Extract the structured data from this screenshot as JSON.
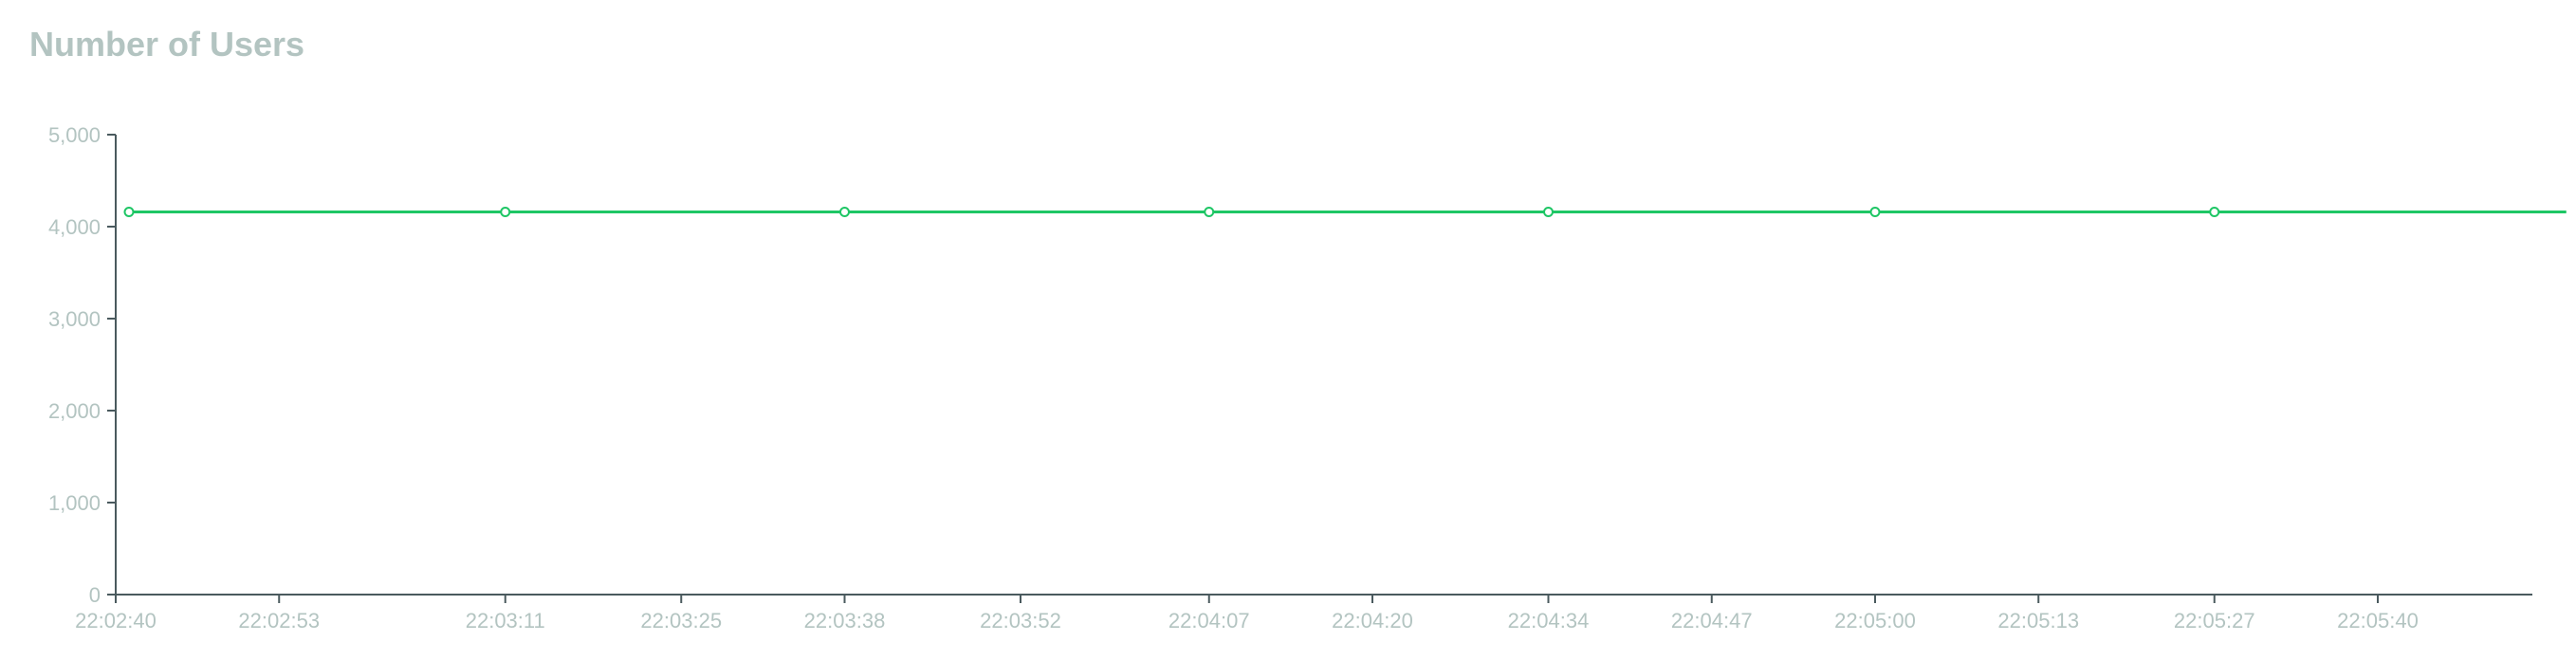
{
  "colors": {
    "title": "#b3c4c1",
    "axis": "#4a5a5e",
    "tick_label": "#b3c4c1",
    "series": "#1ec665"
  },
  "chart_data": {
    "type": "line",
    "title": "Number of Users",
    "xlabel": "",
    "ylabel": "",
    "ylim": [
      0,
      5000
    ],
    "xlim": [
      "22:02:40",
      "22:05:55"
    ],
    "grid": false,
    "y_ticks": [
      "0",
      "1,000",
      "2,000",
      "3,000",
      "4,000",
      "5,000"
    ],
    "y_tick_values": [
      0,
      1000,
      2000,
      3000,
      4000,
      5000
    ],
    "x_ticks": [
      "22:02:40",
      "22:02:53",
      "22:03:11",
      "22:03:25",
      "22:03:38",
      "22:03:52",
      "22:04:07",
      "22:04:20",
      "22:04:34",
      "22:04:47",
      "22:05:00",
      "22:05:13",
      "22:05:27",
      "22:05:40"
    ],
    "series": [
      {
        "x": [
          "22:02:40",
          "22:02:53",
          "22:03:11",
          "22:03:25",
          "22:03:38",
          "22:03:52",
          "22:04:07",
          "22:04:20",
          "22:04:34",
          "22:04:47",
          "22:05:00",
          "22:05:13",
          "22:05:27",
          "22:05:40",
          "22:05:55"
        ],
        "values": [
          4160,
          4160,
          4160,
          4160,
          4160,
          4160,
          4160,
          4160,
          4160,
          4160,
          4160,
          4160,
          4160,
          4160,
          4160
        ],
        "markers": [
          true,
          false,
          true,
          false,
          true,
          false,
          true,
          false,
          true,
          false,
          true,
          false,
          true,
          false,
          false
        ]
      }
    ]
  }
}
